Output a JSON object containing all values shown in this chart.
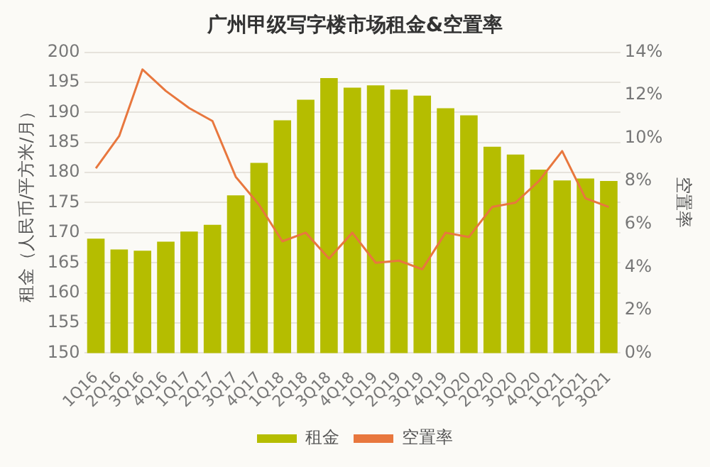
{
  "chart_data": {
    "type": "bar",
    "title": "广州甲级写字楼市场租金&空置率",
    "ylabel": "租金（人民币/平方米/月）",
    "y2label": "空置率",
    "categories": [
      "1Q16",
      "2Q16",
      "3Q16",
      "4Q16",
      "1Q17",
      "2Q17",
      "3Q17",
      "4Q17",
      "1Q18",
      "2Q18",
      "3Q18",
      "4Q18",
      "1Q19",
      "2Q19",
      "3Q19",
      "4Q19",
      "1Q20",
      "2Q20",
      "3Q20",
      "4Q20",
      "1Q21",
      "2Q21",
      "3Q21"
    ],
    "series": [
      {
        "name": "租金",
        "color": "#b5bd00",
        "values": [
          169,
          167.2,
          167,
          168.5,
          170.2,
          171.3,
          176.2,
          181.6,
          188.7,
          192.1,
          195.7,
          194.1,
          194.5,
          193.8,
          192.8,
          190.7,
          189.5,
          184.3,
          183,
          180.5,
          178.7,
          179,
          178.6
        ]
      },
      {
        "name": "空置率",
        "type": "line",
        "axis": "y2",
        "color": "#e8773e",
        "values": [
          8.6,
          10.1,
          13.2,
          12.2,
          11.4,
          10.8,
          8.2,
          6.9,
          5.2,
          5.6,
          4.4,
          5.6,
          4.2,
          4.3,
          3.9,
          5.6,
          5.4,
          6.8,
          7.0,
          8.0,
          9.4,
          7.2,
          6.8
        ]
      }
    ],
    "ylim": [
      150,
      200
    ],
    "yticks": [
      150,
      155,
      160,
      165,
      170,
      175,
      180,
      185,
      190,
      195,
      200
    ],
    "y2lim": [
      0,
      14
    ],
    "y2ticks": [
      {
        "value": 0,
        "label": "0%"
      },
      {
        "value": 2,
        "label": "2%"
      },
      {
        "value": 4,
        "label": "4%"
      },
      {
        "value": 6,
        "label": "6%"
      },
      {
        "value": 8,
        "label": "8%"
      },
      {
        "value": 10,
        "label": "10%"
      },
      {
        "value": 12,
        "label": "12%"
      },
      {
        "value": 14,
        "label": "14%"
      }
    ],
    "grid": "y",
    "legend": "bottom",
    "marker": "none",
    "line_style": "solid"
  }
}
